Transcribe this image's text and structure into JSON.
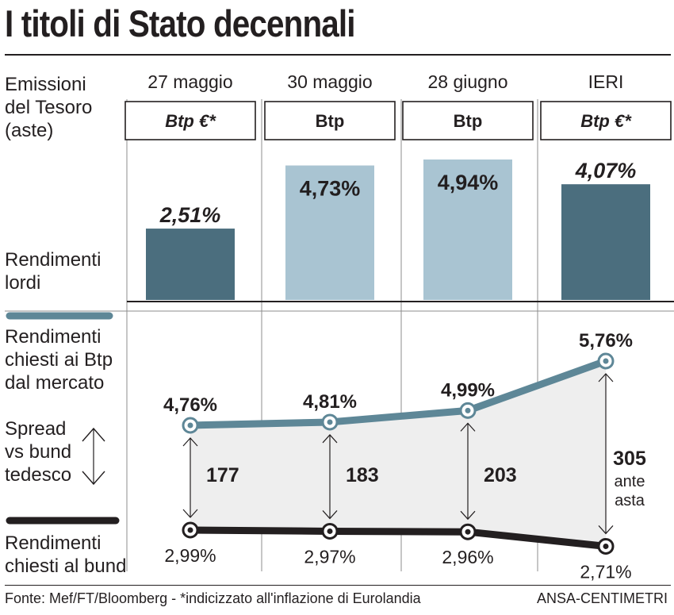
{
  "title": "I titoli di Stato decennali",
  "labels": {
    "emissioni": "Emissioni\ndel Tesoro\n(aste)",
    "rendimenti_lordi": "Rendimenti\nlordi",
    "rendimenti_btp": "Rendimenti\nchiesti ai Btp\ndal mercato",
    "spread": "Spread\nvs bund\ntedesco",
    "rendimenti_bund": "Rendimenti\nchiesti al bund"
  },
  "colors": {
    "btp_euro": "#4b6e7e",
    "btp": "#a9c4d2",
    "market_line": "#5e8797",
    "bund_line": "#231f20",
    "spread_fill": "#eeeeee"
  },
  "chart_data": {
    "type": "bar+line",
    "columns": [
      {
        "date": "27 maggio",
        "bond": "Btp €*",
        "kind": "btp_euro",
        "gross_yield": 2.51,
        "gross_yield_label": "2,51%",
        "market": 4.76,
        "market_label": "4,76%",
        "bund": 2.99,
        "bund_label": "2,99%",
        "spread": 177,
        "spread_label": "177",
        "spread_note": ""
      },
      {
        "date": "30 maggio",
        "bond": "Btp",
        "kind": "btp",
        "gross_yield": 4.73,
        "gross_yield_label": "4,73%",
        "market": 4.81,
        "market_label": "4,81%",
        "bund": 2.97,
        "bund_label": "2,97%",
        "spread": 183,
        "spread_label": "183",
        "spread_note": ""
      },
      {
        "date": "28 giugno",
        "bond": "Btp",
        "kind": "btp",
        "gross_yield": 4.94,
        "gross_yield_label": "4,94%",
        "market": 4.99,
        "market_label": "4,99%",
        "bund": 2.96,
        "bund_label": "2,96%",
        "spread": 203,
        "spread_label": "203",
        "spread_note": ""
      },
      {
        "date": "IERI",
        "bond": "Btp €*",
        "kind": "btp_euro",
        "gross_yield": 4.07,
        "gross_yield_label": "4,07%",
        "market": 5.76,
        "market_label": "5,76%",
        "bund": 2.71,
        "bund_label": "2,71%",
        "spread": 305,
        "spread_label": "305",
        "spread_note": "ante\nasta"
      }
    ]
  },
  "footer": {
    "source": "Fonte: Mef/FT/Bloomberg - *indicizzato all'inflazione di Eurolandia",
    "credit": "ANSA-CENTIMETRI"
  }
}
